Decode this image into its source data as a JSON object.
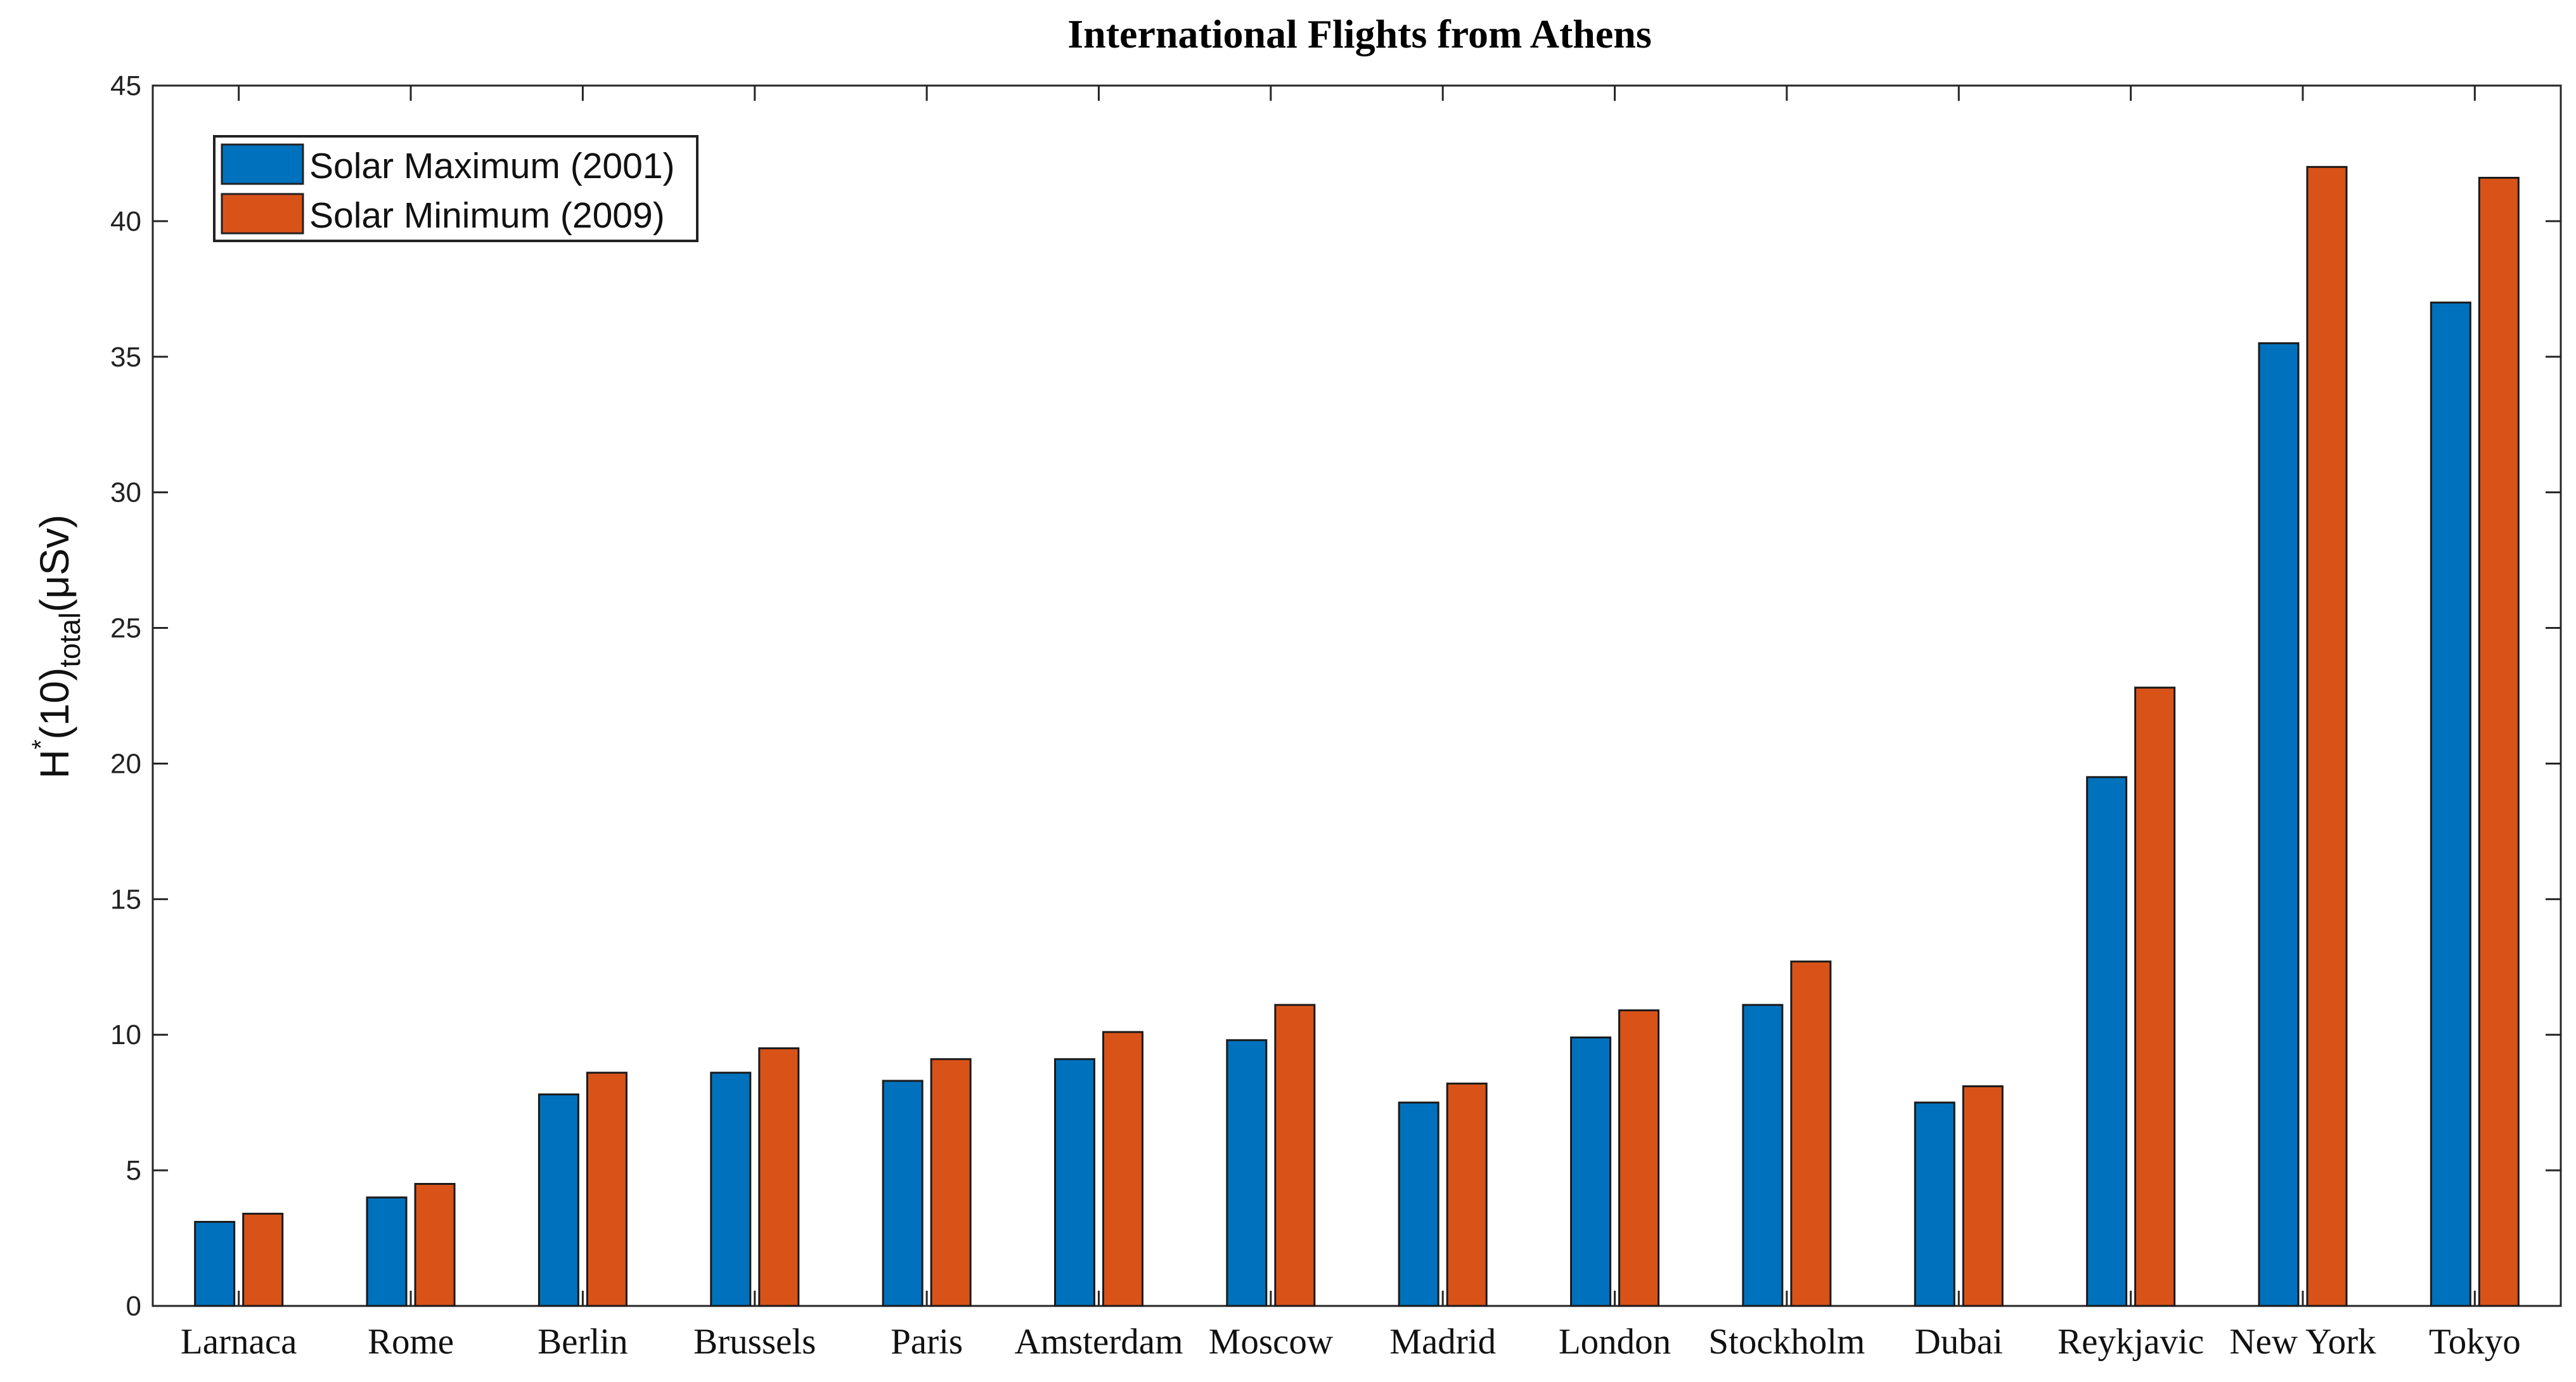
{
  "chart_data": {
    "type": "bar",
    "title": "International Flights from Athens",
    "ylabel": {
      "main": "H",
      "superscript": "*",
      "mid": "(10)",
      "subscript": "total",
      "unit": "(μSv)"
    },
    "xlabel": "",
    "ylim": [
      0,
      45
    ],
    "yticks": [
      0,
      5,
      10,
      15,
      20,
      25,
      30,
      35,
      40,
      45
    ],
    "categories": [
      "Larnaca",
      "Rome",
      "Berlin",
      "Brussels",
      "Paris",
      "Amsterdam",
      "Moscow",
      "Madrid",
      "London",
      "Stockholm",
      "Dubai",
      "Reykjavic",
      "New York",
      "Tokyo"
    ],
    "series": [
      {
        "name": "Solar Maximum (2001)",
        "color": "#0072BD",
        "values": [
          3.1,
          4.0,
          7.8,
          8.6,
          8.3,
          9.1,
          9.8,
          7.5,
          9.9,
          11.1,
          7.5,
          19.5,
          35.5,
          37.0
        ]
      },
      {
        "name": "Solar Minimum (2009)",
        "color": "#D95319",
        "values": [
          3.4,
          4.5,
          8.6,
          9.5,
          9.1,
          10.1,
          11.1,
          8.2,
          10.9,
          12.7,
          8.1,
          22.8,
          42.0,
          41.6
        ]
      }
    ],
    "legend_position": "top-left",
    "grid": false
  }
}
